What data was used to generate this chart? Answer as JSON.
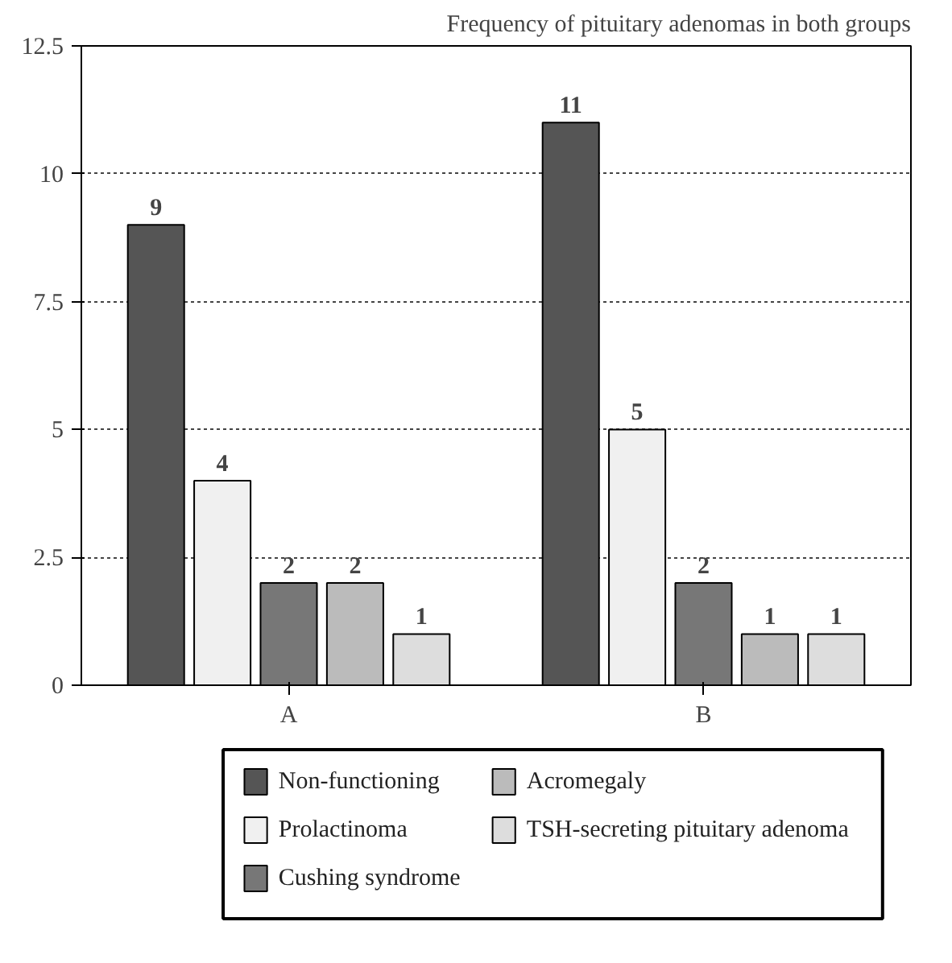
{
  "chart_data": {
    "type": "bar",
    "title": "Frequency of pituitary adenomas in both groups",
    "categories": [
      "A",
      "B"
    ],
    "series": [
      {
        "name": "Non-functioning",
        "color": "#555555",
        "values": [
          9,
          11
        ]
      },
      {
        "name": "Prolactinoma",
        "color": "#f0f0f0",
        "values": [
          4,
          5
        ]
      },
      {
        "name": "Cushing syndrome",
        "color": "#777777",
        "values": [
          2,
          2
        ]
      },
      {
        "name": "Acromegaly",
        "color": "#bbbbbb",
        "values": [
          2,
          1
        ]
      },
      {
        "name": "TSH-secreting pituitary adenoma",
        "color": "#dddddd",
        "values": [
          1,
          1
        ]
      }
    ],
    "ylim": [
      0,
      12.5
    ],
    "yticks": [
      0,
      2.5,
      5,
      7.5,
      10,
      12.5
    ],
    "grid": "y",
    "legend": "bottom",
    "data_labels": true
  }
}
